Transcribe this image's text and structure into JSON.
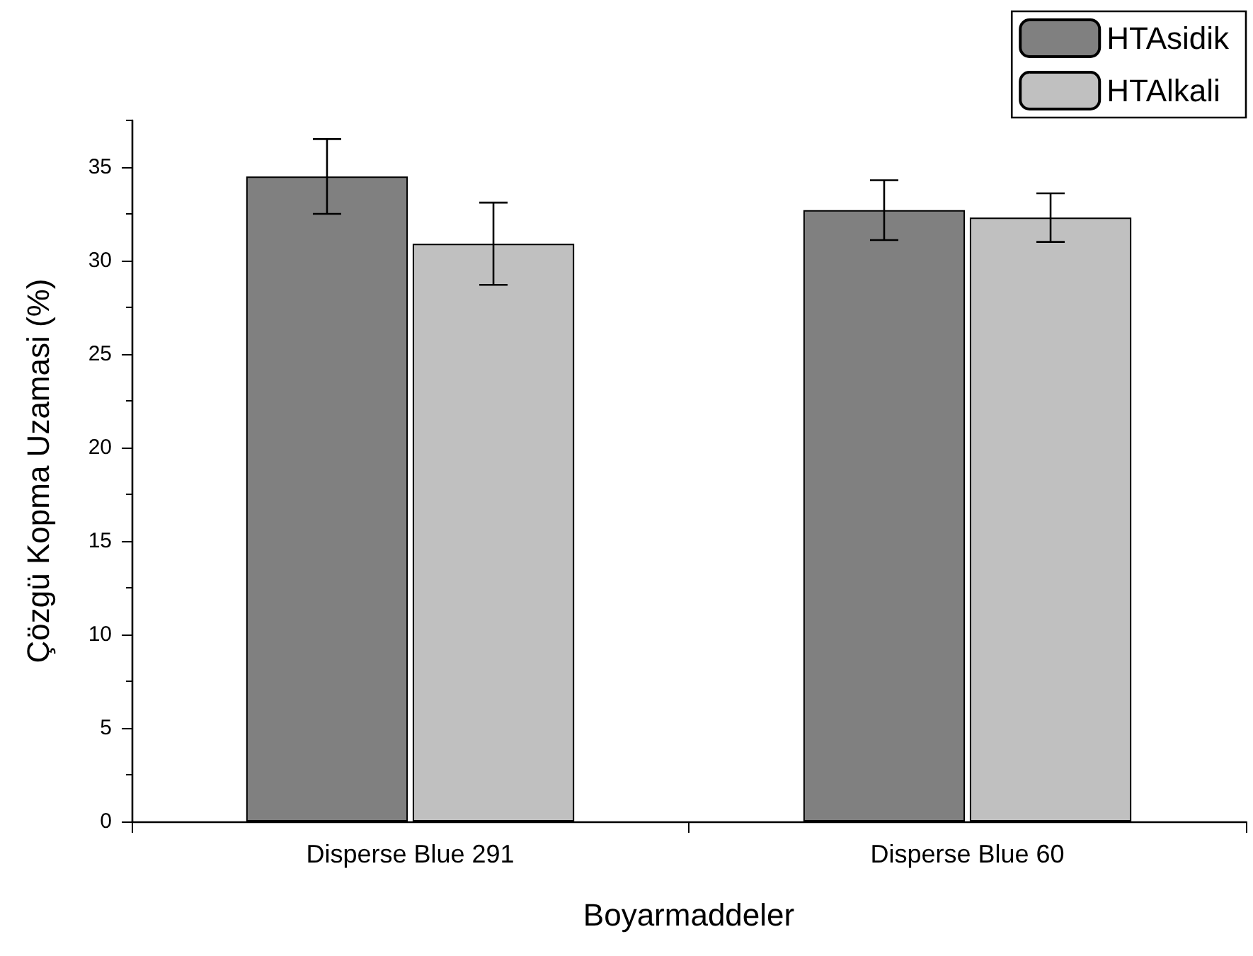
{
  "chart_data": {
    "type": "bar",
    "xlabel": "Boyarmaddeler",
    "ylabel": "Çözgü Kopma Uzamasi (%)",
    "categories": [
      "Disperse Blue 291",
      "Disperse Blue 60"
    ],
    "series": [
      {
        "name": "HTAsidik",
        "color": "#808080",
        "values": [
          34.5,
          32.7
        ],
        "errors": [
          2.0,
          1.6
        ]
      },
      {
        "name": "HTAlkali",
        "color": "#c0c0c0",
        "values": [
          30.9,
          32.3
        ],
        "errors": [
          2.2,
          1.3
        ]
      }
    ],
    "ylim": [
      0,
      37.5
    ],
    "yticks": [
      0,
      5,
      10,
      15,
      20,
      25,
      30,
      35
    ],
    "grid": false,
    "legend": "top right"
  }
}
